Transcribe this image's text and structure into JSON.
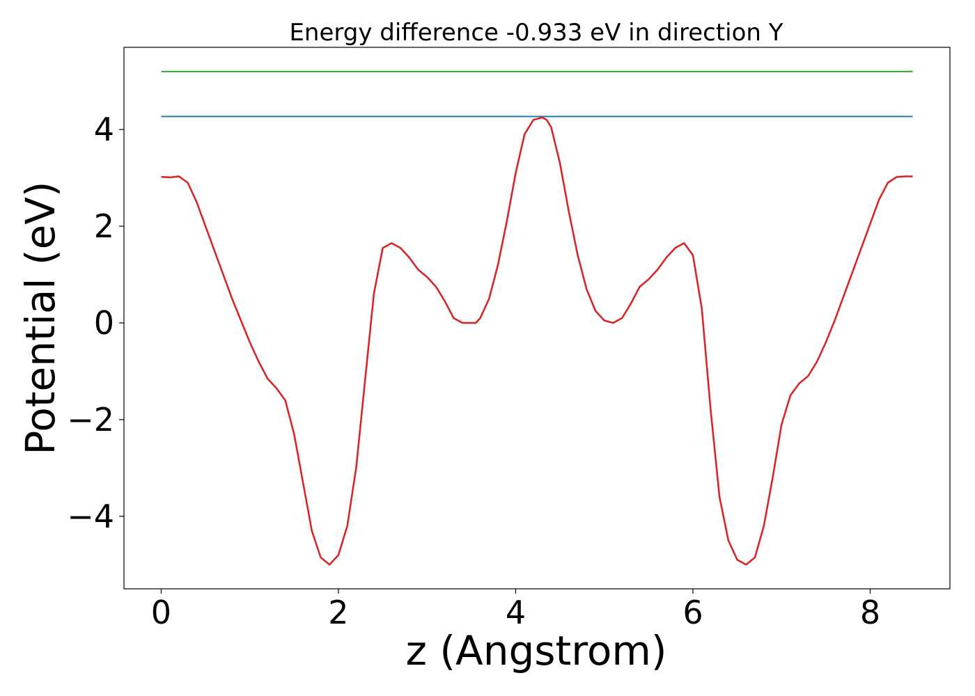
{
  "chart_data": {
    "type": "line",
    "title": "Energy difference -0.933 eV in direction Y",
    "xlabel": "z (Angstrom)",
    "ylabel": "Potential (eV)",
    "xlim": [
      -0.42,
      8.9
    ],
    "ylim": [
      -5.5,
      5.7
    ],
    "xticks": [
      0,
      2,
      4,
      6,
      8
    ],
    "xtick_labels": [
      "0",
      "2",
      "4",
      "6",
      "8"
    ],
    "yticks": [
      -4,
      -2,
      0,
      2,
      4
    ],
    "ytick_labels": [
      "−4",
      "−2",
      "0",
      "2",
      "4"
    ],
    "grid": false,
    "series": [
      {
        "color": "#2ca02c",
        "x": [
          0,
          8.48
        ],
        "y": [
          5.2,
          5.2
        ]
      },
      {
        "color": "#1f77b4",
        "x": [
          0,
          8.48
        ],
        "y": [
          4.27,
          4.27
        ]
      },
      {
        "color": "#d62728",
        "x": [
          0.0,
          0.1,
          0.2,
          0.3,
          0.4,
          0.5,
          0.6,
          0.7,
          0.8,
          0.9,
          1.0,
          1.1,
          1.2,
          1.3,
          1.4,
          1.5,
          1.6,
          1.7,
          1.8,
          1.9,
          2.0,
          2.1,
          2.2,
          2.3,
          2.4,
          2.5,
          2.6,
          2.7,
          2.8,
          2.9,
          3.0,
          3.1,
          3.2,
          3.3,
          3.4,
          3.5,
          3.55,
          3.6,
          3.7,
          3.8,
          3.9,
          4.0,
          4.1,
          4.2,
          4.3,
          4.35,
          4.4,
          4.5,
          4.6,
          4.7,
          4.8,
          4.9,
          5.0,
          5.1,
          5.2,
          5.3,
          5.4,
          5.5,
          5.6,
          5.7,
          5.8,
          5.9,
          6.0,
          6.1,
          6.2,
          6.3,
          6.4,
          6.5,
          6.6,
          6.7,
          6.8,
          6.9,
          7.0,
          7.1,
          7.2,
          7.3,
          7.4,
          7.5,
          7.6,
          7.7,
          7.8,
          7.9,
          8.0,
          8.1,
          8.2,
          8.3,
          8.4,
          8.48
        ],
        "y": [
          3.02,
          3.01,
          3.03,
          2.9,
          2.5,
          2.0,
          1.5,
          1.0,
          0.5,
          0.05,
          -0.4,
          -0.8,
          -1.15,
          -1.35,
          -1.6,
          -2.3,
          -3.3,
          -4.3,
          -4.85,
          -5.0,
          -4.8,
          -4.2,
          -3.0,
          -1.2,
          0.6,
          1.55,
          1.65,
          1.55,
          1.35,
          1.1,
          0.95,
          0.75,
          0.45,
          0.1,
          0.0,
          0.0,
          0.0,
          0.1,
          0.5,
          1.2,
          2.1,
          3.1,
          3.9,
          4.2,
          4.25,
          4.2,
          4.05,
          3.3,
          2.3,
          1.4,
          0.7,
          0.25,
          0.05,
          0.0,
          0.1,
          0.4,
          0.75,
          0.9,
          1.1,
          1.35,
          1.55,
          1.65,
          1.4,
          0.3,
          -1.8,
          -3.6,
          -4.5,
          -4.9,
          -5.0,
          -4.85,
          -4.2,
          -3.2,
          -2.1,
          -1.5,
          -1.25,
          -1.1,
          -0.8,
          -0.4,
          0.05,
          0.55,
          1.05,
          1.55,
          2.05,
          2.55,
          2.9,
          3.02,
          3.03,
          3.03
        ]
      }
    ]
  }
}
